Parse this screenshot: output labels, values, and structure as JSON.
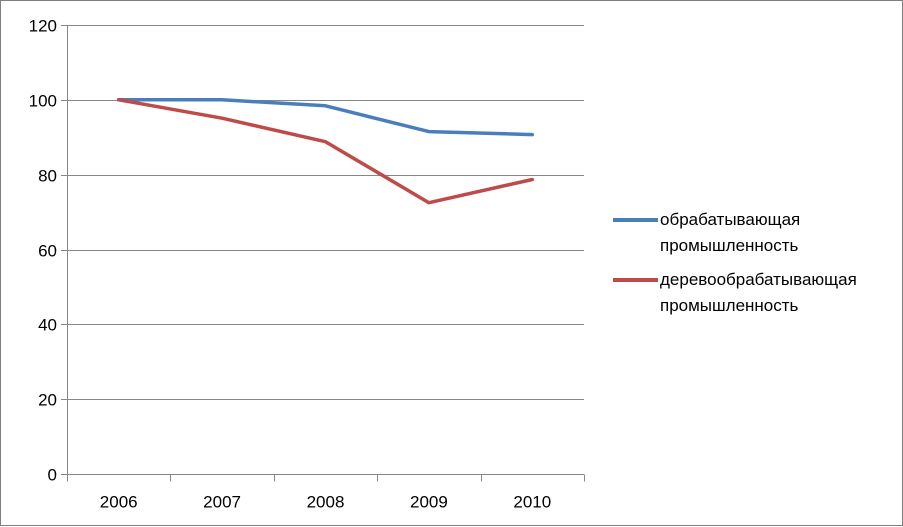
{
  "chart_data": {
    "type": "line",
    "categories": [
      "2006",
      "2007",
      "2008",
      "2009",
      "2010"
    ],
    "series": [
      {
        "name": "обрабатывающая промышленность",
        "values": [
          100,
          100,
          98.4,
          91.5,
          90.7
        ],
        "color": "#4a7ebb"
      },
      {
        "name": "деревообрабатывающая промышленность",
        "values": [
          100,
          95.1,
          88.8,
          72.5,
          78.7
        ],
        "color": "#be4b48"
      }
    ],
    "y_ticks": [
      "0",
      "20",
      "40",
      "60",
      "80",
      "100",
      "120"
    ],
    "ylim": [
      0,
      120
    ],
    "grid": true,
    "legend_position": "right"
  }
}
